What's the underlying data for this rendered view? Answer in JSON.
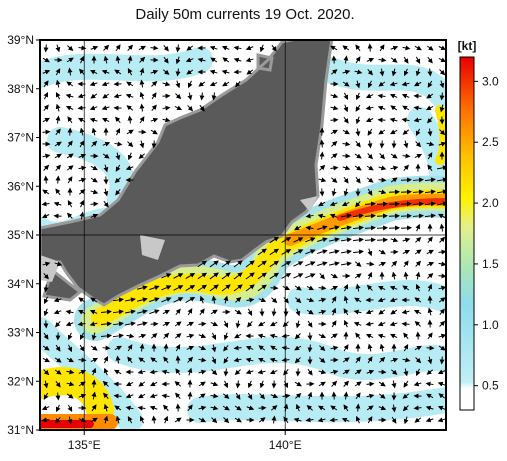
{
  "title": "Daily 50m currents 19 Oct. 2020.",
  "map": {
    "lon_range": [
      133.9,
      144
    ],
    "lat_range": [
      31,
      39
    ],
    "grid_interval": 5,
    "lat_ticks": [
      {
        "value": 31,
        "label": "31°N"
      },
      {
        "value": 32,
        "label": "32°N"
      },
      {
        "value": 33,
        "label": "33°N"
      },
      {
        "value": 34,
        "label": "34°N"
      },
      {
        "value": 35,
        "label": "35°N"
      },
      {
        "value": 36,
        "label": "36°N"
      },
      {
        "value": 37,
        "label": "37°N"
      },
      {
        "value": 38,
        "label": "38°N"
      },
      {
        "value": 39,
        "label": "39°N"
      }
    ],
    "lon_ticks": [
      {
        "value": 135,
        "label": "135°E"
      },
      {
        "value": 140,
        "label": "140°E"
      }
    ]
  },
  "colorbar": {
    "label": "[kt]",
    "lim": [
      0.3,
      3.2
    ],
    "ticks": [
      0.5,
      {
        "value": 1,
        "label": "1.0"
      },
      1.5,
      {
        "value": 2,
        "label": "2.0"
      },
      2.5,
      {
        "value": 3,
        "label": "3.0"
      }
    ]
  }
}
